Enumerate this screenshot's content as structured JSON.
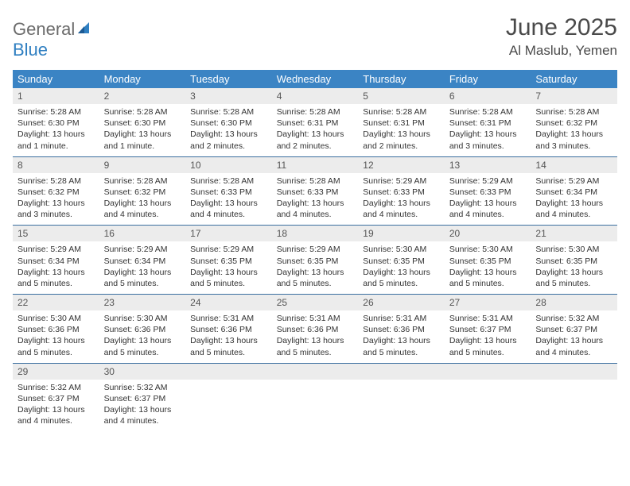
{
  "logo": {
    "part1": "General",
    "part2": "Blue"
  },
  "title": "June 2025",
  "location": "Al Maslub, Yemen",
  "colors": {
    "header_bg": "#3b84c4",
    "header_text": "#ffffff",
    "daynum_bg": "#ececec",
    "row_border": "#3b6fa0",
    "logo_gray": "#6b6b6b",
    "logo_blue": "#2f7fc1",
    "title_color": "#4a4a4a",
    "body_text": "#333333",
    "page_bg": "#ffffff"
  },
  "typography": {
    "title_fontsize": 30,
    "location_fontsize": 17,
    "weekday_fontsize": 13,
    "daynum_fontsize": 12,
    "body_fontsize": 10.5,
    "font_family": "Arial"
  },
  "layout": {
    "columns": 7,
    "rows": 5,
    "cell_min_height": 82
  },
  "weekdays": [
    "Sunday",
    "Monday",
    "Tuesday",
    "Wednesday",
    "Thursday",
    "Friday",
    "Saturday"
  ],
  "days": [
    {
      "n": "1",
      "sr": "5:28 AM",
      "ss": "6:30 PM",
      "dl": "13 hours and 1 minute."
    },
    {
      "n": "2",
      "sr": "5:28 AM",
      "ss": "6:30 PM",
      "dl": "13 hours and 1 minute."
    },
    {
      "n": "3",
      "sr": "5:28 AM",
      "ss": "6:30 PM",
      "dl": "13 hours and 2 minutes."
    },
    {
      "n": "4",
      "sr": "5:28 AM",
      "ss": "6:31 PM",
      "dl": "13 hours and 2 minutes."
    },
    {
      "n": "5",
      "sr": "5:28 AM",
      "ss": "6:31 PM",
      "dl": "13 hours and 2 minutes."
    },
    {
      "n": "6",
      "sr": "5:28 AM",
      "ss": "6:31 PM",
      "dl": "13 hours and 3 minutes."
    },
    {
      "n": "7",
      "sr": "5:28 AM",
      "ss": "6:32 PM",
      "dl": "13 hours and 3 minutes."
    },
    {
      "n": "8",
      "sr": "5:28 AM",
      "ss": "6:32 PM",
      "dl": "13 hours and 3 minutes."
    },
    {
      "n": "9",
      "sr": "5:28 AM",
      "ss": "6:32 PM",
      "dl": "13 hours and 4 minutes."
    },
    {
      "n": "10",
      "sr": "5:28 AM",
      "ss": "6:33 PM",
      "dl": "13 hours and 4 minutes."
    },
    {
      "n": "11",
      "sr": "5:28 AM",
      "ss": "6:33 PM",
      "dl": "13 hours and 4 minutes."
    },
    {
      "n": "12",
      "sr": "5:29 AM",
      "ss": "6:33 PM",
      "dl": "13 hours and 4 minutes."
    },
    {
      "n": "13",
      "sr": "5:29 AM",
      "ss": "6:33 PM",
      "dl": "13 hours and 4 minutes."
    },
    {
      "n": "14",
      "sr": "5:29 AM",
      "ss": "6:34 PM",
      "dl": "13 hours and 4 minutes."
    },
    {
      "n": "15",
      "sr": "5:29 AM",
      "ss": "6:34 PM",
      "dl": "13 hours and 5 minutes."
    },
    {
      "n": "16",
      "sr": "5:29 AM",
      "ss": "6:34 PM",
      "dl": "13 hours and 5 minutes."
    },
    {
      "n": "17",
      "sr": "5:29 AM",
      "ss": "6:35 PM",
      "dl": "13 hours and 5 minutes."
    },
    {
      "n": "18",
      "sr": "5:29 AM",
      "ss": "6:35 PM",
      "dl": "13 hours and 5 minutes."
    },
    {
      "n": "19",
      "sr": "5:30 AM",
      "ss": "6:35 PM",
      "dl": "13 hours and 5 minutes."
    },
    {
      "n": "20",
      "sr": "5:30 AM",
      "ss": "6:35 PM",
      "dl": "13 hours and 5 minutes."
    },
    {
      "n": "21",
      "sr": "5:30 AM",
      "ss": "6:35 PM",
      "dl": "13 hours and 5 minutes."
    },
    {
      "n": "22",
      "sr": "5:30 AM",
      "ss": "6:36 PM",
      "dl": "13 hours and 5 minutes."
    },
    {
      "n": "23",
      "sr": "5:30 AM",
      "ss": "6:36 PM",
      "dl": "13 hours and 5 minutes."
    },
    {
      "n": "24",
      "sr": "5:31 AM",
      "ss": "6:36 PM",
      "dl": "13 hours and 5 minutes."
    },
    {
      "n": "25",
      "sr": "5:31 AM",
      "ss": "6:36 PM",
      "dl": "13 hours and 5 minutes."
    },
    {
      "n": "26",
      "sr": "5:31 AM",
      "ss": "6:36 PM",
      "dl": "13 hours and 5 minutes."
    },
    {
      "n": "27",
      "sr": "5:31 AM",
      "ss": "6:37 PM",
      "dl": "13 hours and 5 minutes."
    },
    {
      "n": "28",
      "sr": "5:32 AM",
      "ss": "6:37 PM",
      "dl": "13 hours and 4 minutes."
    },
    {
      "n": "29",
      "sr": "5:32 AM",
      "ss": "6:37 PM",
      "dl": "13 hours and 4 minutes."
    },
    {
      "n": "30",
      "sr": "5:32 AM",
      "ss": "6:37 PM",
      "dl": "13 hours and 4 minutes."
    }
  ],
  "labels": {
    "sunrise": "Sunrise:",
    "sunset": "Sunset:",
    "daylight": "Daylight:"
  }
}
